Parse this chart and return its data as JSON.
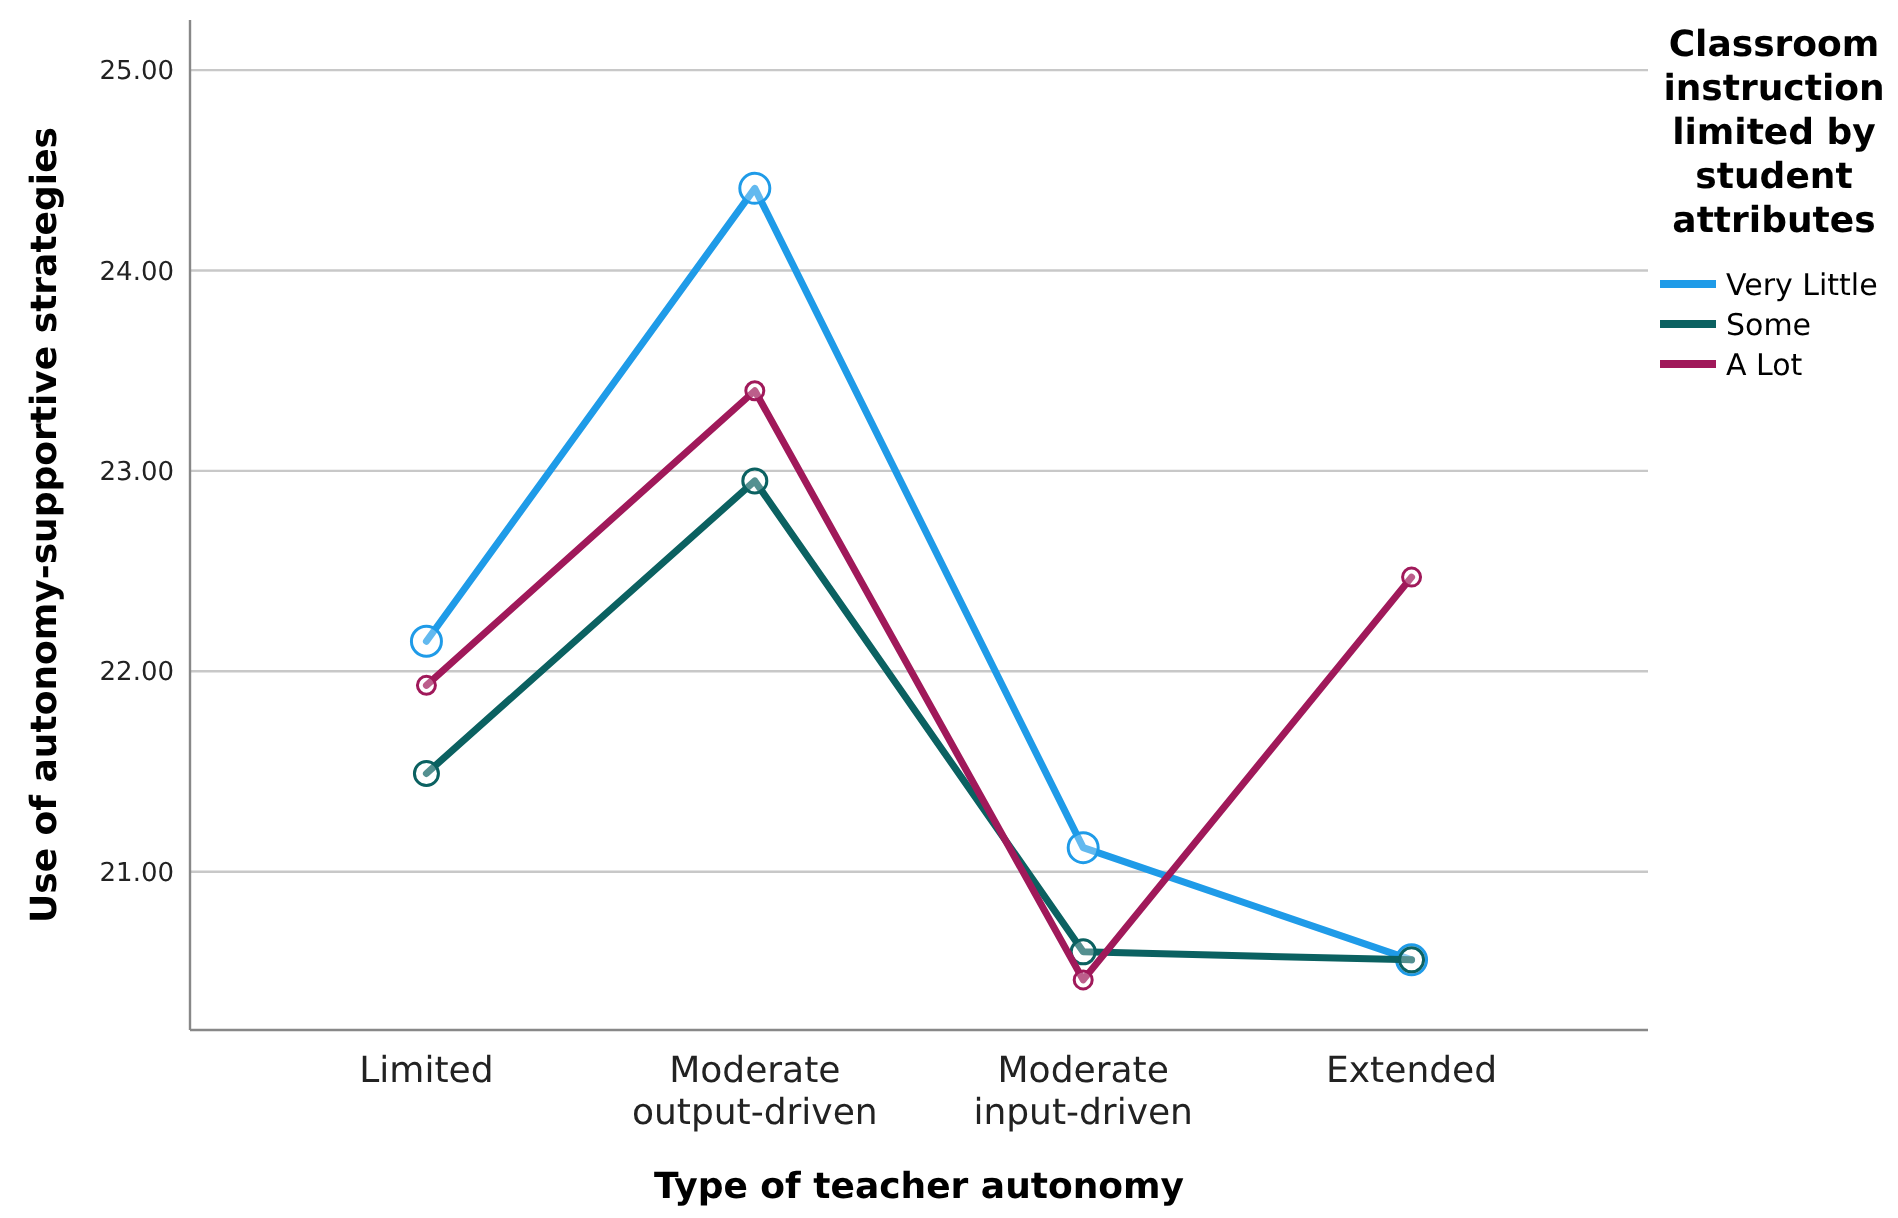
{
  "chart_data": {
    "type": "line",
    "xlabel": "Type of teacher autonomy",
    "ylabel": "Use of autonomy-supportive strategies",
    "legend_title": "Classroom instruction limited by student attributes",
    "categories": [
      "Limited",
      "Moderate output-driven",
      "Moderate input-driven",
      "Extended"
    ],
    "series": [
      {
        "name": "Very Little",
        "color": "#1f9be8",
        "values": [
          22.15,
          24.41,
          21.12,
          20.56
        ]
      },
      {
        "name": "Some",
        "color": "#0b6161",
        "values": [
          21.49,
          22.95,
          20.6,
          20.56
        ]
      },
      {
        "name": "A Lot",
        "color": "#a0195a",
        "values": [
          21.93,
          23.4,
          20.46,
          22.47
        ]
      }
    ],
    "ylim": [
      20.21,
      25.25
    ],
    "yticks": [
      {
        "value": 21,
        "label": "21.00"
      },
      {
        "value": 22,
        "label": "22.00"
      },
      {
        "value": 23,
        "label": "23.00"
      },
      {
        "value": 24,
        "label": "24.00"
      },
      {
        "value": 25,
        "label": "25.00"
      }
    ],
    "grid": "y",
    "legend": "right",
    "marker": "circle",
    "line_style": "solid"
  }
}
